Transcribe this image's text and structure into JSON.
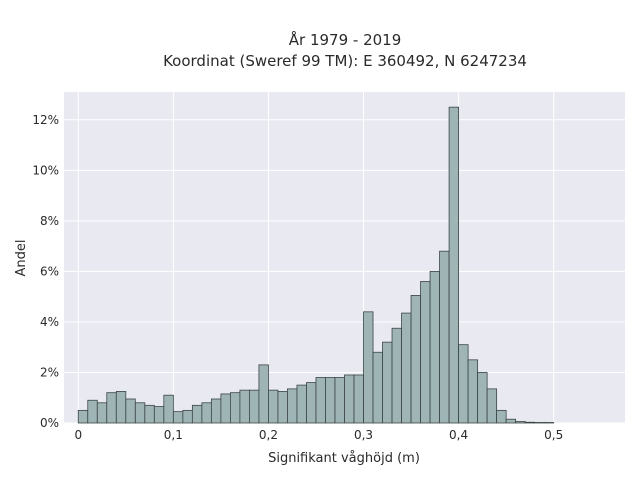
{
  "chart_data": {
    "type": "bar",
    "title": [
      "År 1979 - 2019",
      "Koordinat (Sweref 99 TM): E 360492, N 6247234"
    ],
    "xlabel": "Signifikant våghöjd (m)",
    "ylabel": "Andel",
    "xlim": [
      -0.015,
      0.575
    ],
    "ylim": [
      0,
      13.1
    ],
    "x_ticks": [
      0,
      0.1,
      0.2,
      0.3,
      0.4,
      0.5
    ],
    "x_tick_labels": [
      "0",
      "0,1",
      "0,2",
      "0,3",
      "0,4",
      "0,5"
    ],
    "y_ticks": [
      0,
      2,
      4,
      6,
      8,
      10,
      12
    ],
    "y_tick_labels": [
      "0%",
      "2%",
      "4%",
      "6%",
      "8%",
      "10%",
      "12%"
    ],
    "bin_width": 0.01,
    "bin_start": 0.0,
    "values": [
      0.5,
      0.9,
      0.8,
      1.2,
      1.25,
      0.95,
      0.8,
      0.7,
      0.65,
      1.1,
      0.45,
      0.5,
      0.7,
      0.8,
      0.95,
      1.15,
      1.2,
      1.3,
      1.3,
      2.3,
      1.3,
      1.25,
      1.35,
      1.5,
      1.6,
      1.8,
      1.8,
      1.8,
      1.9,
      1.9,
      4.4,
      2.8,
      3.2,
      3.75,
      4.35,
      5.05,
      5.6,
      6.0,
      6.8,
      12.5,
      3.1,
      2.5,
      2.0,
      1.35,
      0.5,
      0.15,
      0.06,
      0.03,
      0.02,
      0.02
    ],
    "grid": true,
    "colors": {
      "bar_fill": "#9fb5b5",
      "bar_edge": "#3a4545",
      "plot_bg": "#e9e9f1",
      "grid": "#ffffff"
    }
  }
}
